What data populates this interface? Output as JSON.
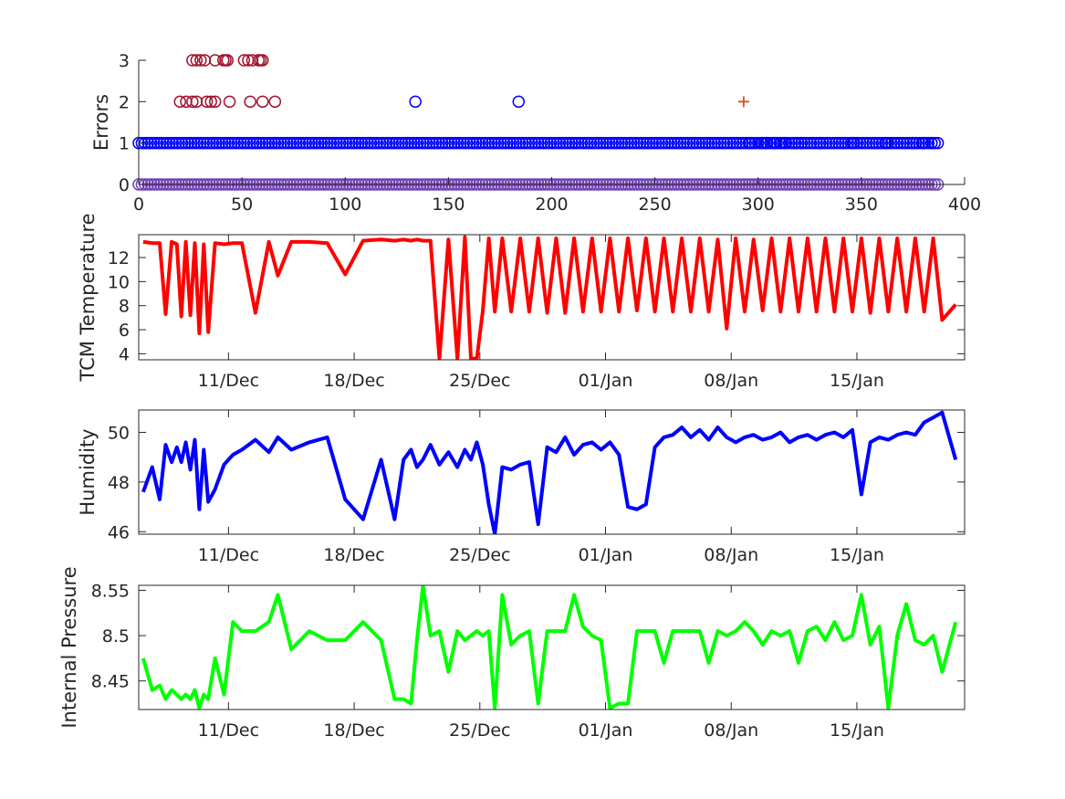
{
  "chart_data": [
    {
      "type": "scatter",
      "ylabel": "Errors",
      "xlim": [
        0,
        400
      ],
      "ylim": [
        0,
        3
      ],
      "xticks": [
        0,
        50,
        100,
        150,
        200,
        250,
        300,
        350,
        400
      ],
      "yticks": [
        0,
        1,
        2,
        3
      ],
      "series_colors": {
        "zero_points": "#6f3fb4",
        "blue_circles": "#0000ff",
        "dark_red_circles": "#a2142f",
        "plus_marker": "#d95319"
      },
      "series": [
        {
          "marker": "circle",
          "color_key": "blue_circles",
          "y": 1,
          "x_range": [
            0,
            388
          ],
          "density": "continuous"
        },
        {
          "marker": "circle",
          "color_key": "zero_points",
          "y": 0,
          "x_range": [
            0,
            388
          ],
          "density": "continuous"
        },
        {
          "marker": "circle",
          "color_key": "dark_red_circles",
          "points": [
            {
              "x": 20,
              "y": 2
            },
            {
              "x": 23,
              "y": 2
            },
            {
              "x": 26,
              "y": 2
            },
            {
              "x": 28,
              "y": 2
            },
            {
              "x": 33,
              "y": 2
            },
            {
              "x": 35,
              "y": 2
            },
            {
              "x": 37,
              "y": 2
            },
            {
              "x": 44,
              "y": 2
            },
            {
              "x": 54,
              "y": 2
            },
            {
              "x": 60,
              "y": 2
            },
            {
              "x": 66,
              "y": 2
            },
            {
              "x": 26,
              "y": 3
            },
            {
              "x": 28,
              "y": 3
            },
            {
              "x": 30,
              "y": 3
            },
            {
              "x": 32,
              "y": 3
            },
            {
              "x": 37,
              "y": 3
            },
            {
              "x": 41,
              "y": 3
            },
            {
              "x": 42,
              "y": 3
            },
            {
              "x": 43,
              "y": 3
            },
            {
              "x": 51,
              "y": 3
            },
            {
              "x": 53,
              "y": 3
            },
            {
              "x": 55,
              "y": 3
            },
            {
              "x": 58,
              "y": 3
            },
            {
              "x": 59,
              "y": 3
            },
            {
              "x": 60,
              "y": 3
            }
          ]
        },
        {
          "marker": "circle",
          "color_key": "blue_circles",
          "points": [
            {
              "x": 134,
              "y": 2
            },
            {
              "x": 184,
              "y": 2
            },
            {
              "x": 296,
              "y": 1
            },
            {
              "x": 302,
              "y": 1
            },
            {
              "x": 304,
              "y": 1
            },
            {
              "x": 308,
              "y": 1
            },
            {
              "x": 311,
              "y": 1
            },
            {
              "x": 313,
              "y": 1
            },
            {
              "x": 318,
              "y": 1
            },
            {
              "x": 321,
              "y": 1
            },
            {
              "x": 330,
              "y": 1
            },
            {
              "x": 346,
              "y": 1
            },
            {
              "x": 362,
              "y": 1
            },
            {
              "x": 375,
              "y": 1
            },
            {
              "x": 380,
              "y": 1
            },
            {
              "x": 384,
              "y": 1
            }
          ]
        },
        {
          "marker": "plus",
          "color_key": "plus_marker",
          "points": [
            {
              "x": 293,
              "y": 2
            }
          ]
        }
      ]
    },
    {
      "type": "line",
      "ylabel": "TCM Temperature",
      "color": "#ff0000",
      "x_range": [
        "2016-12-06",
        "2017-01-20"
      ],
      "xtick_labels": [
        "11/Dec",
        "18/Dec",
        "25/Dec",
        "01/Jan",
        "08/Jan",
        "15/Jan"
      ],
      "xtick_dates": [
        "2016-12-11",
        "2016-12-18",
        "2016-12-25",
        "2017-01-01",
        "2017-01-08",
        "2017-01-15"
      ],
      "ylim": [
        3.5,
        13.9
      ],
      "yticks": [
        4,
        6,
        8,
        10,
        12
      ],
      "x_dates": [
        "2016-12-06",
        "2016-12-06",
        "2016-12-07",
        "2016-12-07",
        "2016-12-07",
        "2016-12-08",
        "2016-12-08",
        "2016-12-08",
        "2016-12-08",
        "2016-12-09",
        "2016-12-09",
        "2016-12-09",
        "2016-12-09",
        "2016-12-10",
        "2016-12-10",
        "2016-12-11",
        "2016-12-11",
        "2016-12-12",
        "2016-12-13",
        "2016-12-13",
        "2016-12-14",
        "2016-12-15",
        "2016-12-16",
        "2016-12-17",
        "2016-12-18",
        "2016-12-19",
        "2016-12-20",
        "2016-12-20",
        "2016-12-21",
        "2016-12-21",
        "2016-12-21",
        "2016-12-22",
        "2016-12-22",
        "2016-12-23",
        "2016-12-23",
        "2016-12-24",
        "2016-12-24",
        "2016-12-24",
        "2016-12-25",
        "2016-12-25",
        "2016-12-25",
        "2016-12-26",
        "2016-12-26",
        "2016-12-27",
        "2016-12-27",
        "2016-12-28",
        "2016-12-28",
        "2016-12-29",
        "2016-12-29",
        "2016-12-30",
        "2016-12-30",
        "2016-12-31",
        "2016-12-31",
        "2017-01-01",
        "2017-01-01",
        "2017-01-02",
        "2017-01-02",
        "2017-01-03",
        "2017-01-03",
        "2017-01-04",
        "2017-01-04",
        "2017-01-05",
        "2017-01-05",
        "2017-01-06",
        "2017-01-06",
        "2017-01-07",
        "2017-01-07",
        "2017-01-08",
        "2017-01-08",
        "2017-01-09",
        "2017-01-09",
        "2017-01-10",
        "2017-01-10",
        "2017-01-11",
        "2017-01-11",
        "2017-01-12",
        "2017-01-12",
        "2017-01-13",
        "2017-01-13",
        "2017-01-14",
        "2017-01-14",
        "2017-01-15",
        "2017-01-15",
        "2017-01-16",
        "2017-01-16",
        "2017-01-17",
        "2017-01-17",
        "2017-01-18",
        "2017-01-18",
        "2017-01-19",
        "2017-01-19",
        "2017-01-20"
      ],
      "y": [
        13.3,
        13.2,
        13.2,
        7.3,
        13.3,
        13.1,
        7.1,
        13.3,
        7.2,
        13.2,
        5.7,
        13.1,
        5.8,
        13.2,
        13.1,
        13.2,
        13.2,
        7.4,
        13.3,
        10.5,
        13.3,
        13.3,
        13.2,
        10.6,
        13.4,
        13.5,
        13.4,
        13.5,
        13.4,
        13.5,
        13.4,
        13.4,
        3.6,
        13.5,
        3.6,
        13.7,
        3.6,
        3.6,
        7.6,
        13.6,
        7.5,
        13.6,
        7.5,
        13.6,
        7.5,
        13.6,
        7.4,
        13.6,
        7.4,
        13.6,
        7.5,
        13.6,
        7.5,
        13.6,
        7.5,
        13.6,
        7.6,
        13.6,
        7.5,
        13.6,
        7.5,
        13.6,
        7.5,
        13.6,
        7.5,
        13.5,
        6.1,
        13.6,
        7.5,
        13.5,
        7.6,
        13.6,
        7.5,
        13.6,
        7.5,
        13.6,
        7.5,
        13.6,
        7.5,
        13.6,
        7.5,
        13.6,
        7.4,
        13.6,
        7.5,
        13.6,
        7.5,
        13.6,
        7.5,
        13.6,
        6.8,
        8.1
      ]
    },
    {
      "type": "line",
      "ylabel": "Humidity",
      "color": "#0000ff",
      "x_range": [
        "2016-12-06",
        "2017-01-20"
      ],
      "xtick_labels": [
        "11/Dec",
        "18/Dec",
        "25/Dec",
        "01/Jan",
        "08/Jan",
        "15/Jan"
      ],
      "xtick_dates": [
        "2016-12-11",
        "2016-12-18",
        "2016-12-25",
        "2017-01-01",
        "2017-01-08",
        "2017-01-15"
      ],
      "ylim": [
        45.9,
        50.9
      ],
      "yticks": [
        46,
        48,
        50
      ],
      "x_dates": [
        "2016-12-06",
        "2016-12-06",
        "2016-12-07",
        "2016-12-07",
        "2016-12-07",
        "2016-12-08",
        "2016-12-08",
        "2016-12-08",
        "2016-12-08",
        "2016-12-09",
        "2016-12-09",
        "2016-12-09",
        "2016-12-09",
        "2016-12-10",
        "2016-12-10",
        "2016-12-11",
        "2016-12-11",
        "2016-12-12",
        "2016-12-13",
        "2016-12-13",
        "2016-12-14",
        "2016-12-15",
        "2016-12-16",
        "2016-12-17",
        "2016-12-18",
        "2016-12-19",
        "2016-12-20",
        "2016-12-20",
        "2016-12-21",
        "2016-12-21",
        "2016-12-21",
        "2016-12-22",
        "2016-12-22",
        "2016-12-23",
        "2016-12-23",
        "2016-12-24",
        "2016-12-24",
        "2016-12-24",
        "2016-12-25",
        "2016-12-25",
        "2016-12-25",
        "2016-12-26",
        "2016-12-26",
        "2016-12-27",
        "2016-12-27",
        "2016-12-28",
        "2016-12-28",
        "2016-12-29",
        "2016-12-29",
        "2016-12-30",
        "2016-12-30",
        "2016-12-31",
        "2016-12-31",
        "2017-01-01",
        "2017-01-01",
        "2017-01-02",
        "2017-01-02",
        "2017-01-03",
        "2017-01-03",
        "2017-01-04",
        "2017-01-04",
        "2017-01-05",
        "2017-01-05",
        "2017-01-06",
        "2017-01-06",
        "2017-01-07",
        "2017-01-07",
        "2017-01-08",
        "2017-01-08",
        "2017-01-09",
        "2017-01-09",
        "2017-01-10",
        "2017-01-10",
        "2017-01-11",
        "2017-01-11",
        "2017-01-12",
        "2017-01-12",
        "2017-01-13",
        "2017-01-13",
        "2017-01-14",
        "2017-01-14",
        "2017-01-15",
        "2017-01-15",
        "2017-01-16",
        "2017-01-16",
        "2017-01-17",
        "2017-01-17",
        "2017-01-18",
        "2017-01-18",
        "2017-01-19",
        "2017-01-19",
        "2017-01-20"
      ],
      "y": [
        47.6,
        48.6,
        47.3,
        49.5,
        48.8,
        49.4,
        48.8,
        49.6,
        48.5,
        49.7,
        46.9,
        49.3,
        47.2,
        47.7,
        48.7,
        49.1,
        49.3,
        49.7,
        49.2,
        49.8,
        49.3,
        49.6,
        49.8,
        47.3,
        46.5,
        48.9,
        46.5,
        48.9,
        49.3,
        48.6,
        48.9,
        49.5,
        48.7,
        49.2,
        48.6,
        49.3,
        48.9,
        49.6,
        48.7,
        47.1,
        45.9,
        48.6,
        48.5,
        48.7,
        48.8,
        46.3,
        49.4,
        49.2,
        49.8,
        49.1,
        49.5,
        49.6,
        49.3,
        49.6,
        49.1,
        47.0,
        46.9,
        47.1,
        49.4,
        49.8,
        49.9,
        50.2,
        49.8,
        50.1,
        49.7,
        50.2,
        49.8,
        49.6,
        49.8,
        49.9,
        49.7,
        49.8,
        50.0,
        49.6,
        49.8,
        49.9,
        49.7,
        49.9,
        50.0,
        49.8,
        50.1,
        47.5,
        49.6,
        49.8,
        49.7,
        49.9,
        50.0,
        49.9,
        50.4,
        50.6,
        50.8,
        48.9
      ]
    },
    {
      "type": "line",
      "ylabel": "Internal Pressure",
      "color": "#00ff00",
      "x_range": [
        "2016-12-06",
        "2017-01-20"
      ],
      "xtick_labels": [
        "11/Dec",
        "18/Dec",
        "25/Dec",
        "01/Jan",
        "08/Jan",
        "15/Jan"
      ],
      "xtick_dates": [
        "2016-12-11",
        "2016-12-18",
        "2016-12-25",
        "2017-01-01",
        "2017-01-08",
        "2017-01-15"
      ],
      "ylim": [
        8.4185,
        8.5555
      ],
      "yticks": [
        8.45,
        8.5,
        8.55
      ],
      "ytick_labels": [
        "8.45",
        "8.5",
        "8.55"
      ],
      "x_dates": [
        "2016-12-06",
        "2016-12-06",
        "2016-12-07",
        "2016-12-07",
        "2016-12-07",
        "2016-12-08",
        "2016-12-08",
        "2016-12-08",
        "2016-12-08",
        "2016-12-09",
        "2016-12-09",
        "2016-12-09",
        "2016-12-09",
        "2016-12-10",
        "2016-12-10",
        "2016-12-11",
        "2016-12-11",
        "2016-12-12",
        "2016-12-13",
        "2016-12-13",
        "2016-12-14",
        "2016-12-15",
        "2016-12-16",
        "2016-12-17",
        "2016-12-18",
        "2016-12-19",
        "2016-12-20",
        "2016-12-20",
        "2016-12-21",
        "2016-12-21",
        "2016-12-21",
        "2016-12-22",
        "2016-12-22",
        "2016-12-23",
        "2016-12-23",
        "2016-12-24",
        "2016-12-24",
        "2016-12-24",
        "2016-12-25",
        "2016-12-25",
        "2016-12-25",
        "2016-12-26",
        "2016-12-26",
        "2016-12-27",
        "2016-12-27",
        "2016-12-28",
        "2016-12-28",
        "2016-12-29",
        "2016-12-29",
        "2016-12-30",
        "2016-12-30",
        "2016-12-31",
        "2016-12-31",
        "2017-01-01",
        "2017-01-01",
        "2017-01-02",
        "2017-01-02",
        "2017-01-03",
        "2017-01-03",
        "2017-01-04",
        "2017-01-04",
        "2017-01-05",
        "2017-01-05",
        "2017-01-06",
        "2017-01-06",
        "2017-01-07",
        "2017-01-07",
        "2017-01-08",
        "2017-01-08",
        "2017-01-09",
        "2017-01-09",
        "2017-01-10",
        "2017-01-10",
        "2017-01-11",
        "2017-01-11",
        "2017-01-12",
        "2017-01-12",
        "2017-01-13",
        "2017-01-13",
        "2017-01-14",
        "2017-01-14",
        "2017-01-15",
        "2017-01-15",
        "2017-01-16",
        "2017-01-16",
        "2017-01-17",
        "2017-01-17",
        "2017-01-18",
        "2017-01-18",
        "2017-01-19",
        "2017-01-19",
        "2017-01-20"
      ],
      "y": [
        8.475,
        8.44,
        8.445,
        8.43,
        8.44,
        8.435,
        8.43,
        8.435,
        8.43,
        8.44,
        8.42,
        8.435,
        8.43,
        8.475,
        8.435,
        8.515,
        8.505,
        8.505,
        8.515,
        8.545,
        8.485,
        8.505,
        8.495,
        8.495,
        8.515,
        8.495,
        8.43,
        8.43,
        8.425,
        8.495,
        8.555,
        8.5,
        8.505,
        8.46,
        8.505,
        8.495,
        8.5,
        8.505,
        8.5,
        8.505,
        8.42,
        8.545,
        8.49,
        8.5,
        8.505,
        8.425,
        8.505,
        8.505,
        8.505,
        8.545,
        8.51,
        8.5,
        8.495,
        8.42,
        8.425,
        8.425,
        8.505,
        8.505,
        8.505,
        8.47,
        8.505,
        8.505,
        8.505,
        8.505,
        8.47,
        8.505,
        8.5,
        8.505,
        8.515,
        8.505,
        8.49,
        8.505,
        8.5,
        8.505,
        8.47,
        8.505,
        8.51,
        8.495,
        8.515,
        8.495,
        8.5,
        8.545,
        8.49,
        8.51,
        8.42,
        8.5,
        8.535,
        8.495,
        8.49,
        8.5,
        8.46,
        8.515
      ]
    }
  ]
}
